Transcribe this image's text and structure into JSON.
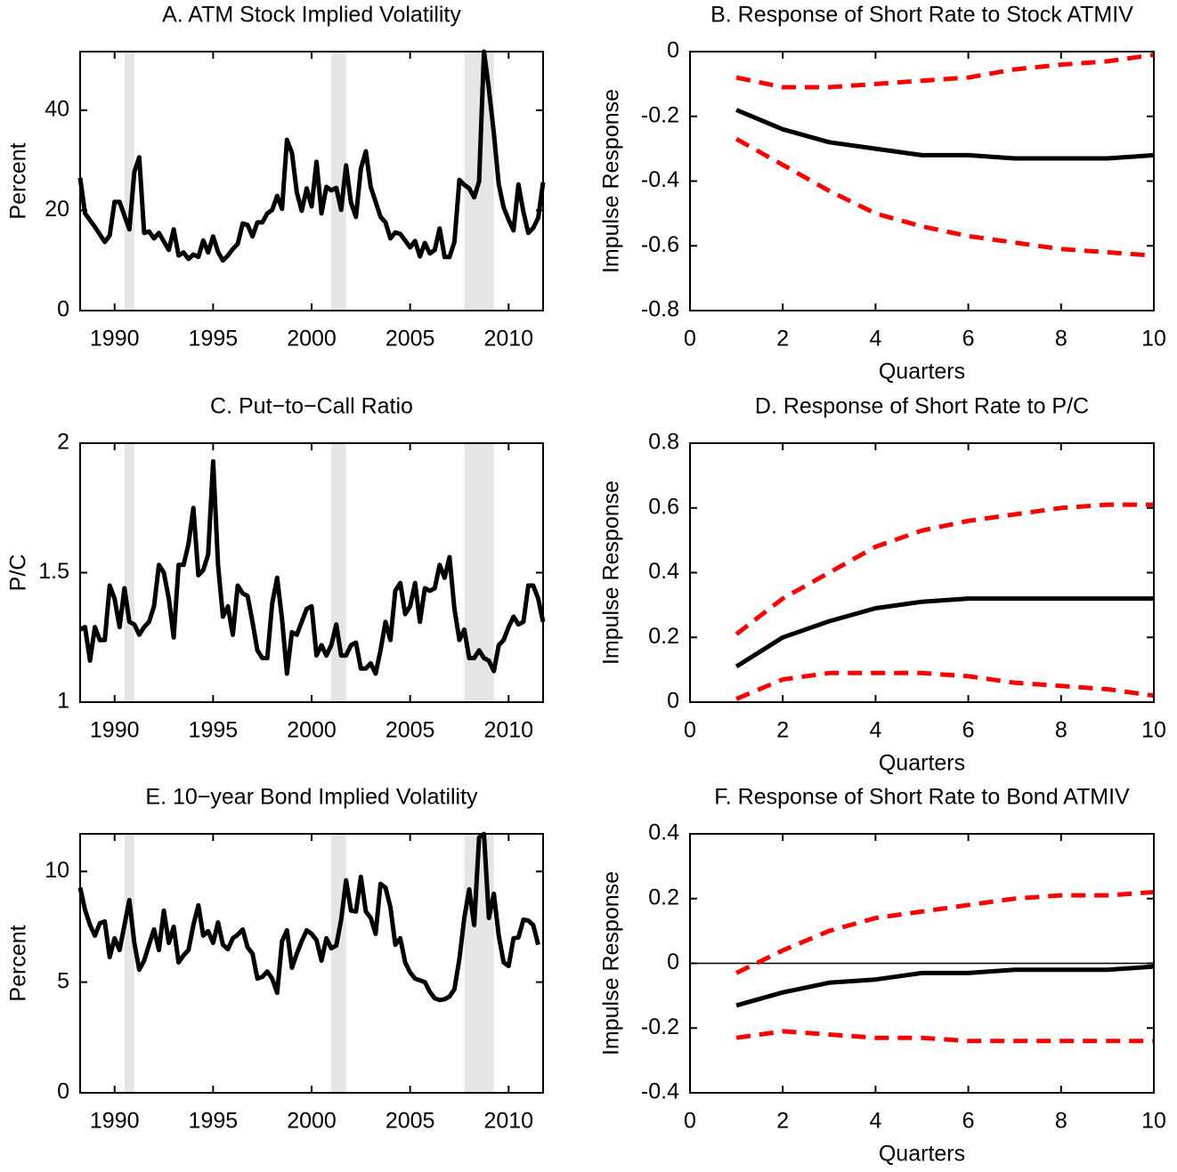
{
  "chart_data": [
    {
      "type": "line",
      "title": "A. ATM Stock Implied Volatility",
      "ylabel": "Percent",
      "x": [
        1988.25,
        1988.5,
        1989,
        1989.5,
        1989.75,
        1990,
        1990.25,
        1990.75,
        1991,
        1991.25,
        1991.5,
        1991.75,
        1992,
        1992.25,
        1992.75,
        1993,
        1993.25,
        1993.5,
        1993.75,
        1994,
        1994.25,
        1994.5,
        1994.75,
        1995,
        1995.25,
        1995.5,
        1995.75,
        1996,
        1996.25,
        1996.5,
        1996.75,
        1997,
        1997.25,
        1997.5,
        1997.75,
        1998,
        1998.25,
        1998.5,
        1998.75,
        1999,
        1999.25,
        1999.5,
        1999.75,
        2000,
        2000.25,
        2000.5,
        2000.75,
        2001,
        2001.25,
        2001.5,
        2001.75,
        2002,
        2002.25,
        2002.5,
        2002.75,
        2003,
        2003.5,
        2003.75,
        2004,
        2004.25,
        2004.5,
        2004.75,
        2005,
        2005.25,
        2005.5,
        2005.75,
        2006,
        2006.25,
        2006.5,
        2006.75,
        2007,
        2007.25,
        2007.5,
        2007.75,
        2008,
        2008.25,
        2008.5,
        2008.75,
        2009,
        2009.25,
        2009.5,
        2009.75,
        2010,
        2010.25,
        2010.5,
        2010.75,
        2011,
        2011.25,
        2011.5,
        2011.75
      ],
      "values": [
        26.5,
        19.4,
        16.7,
        13.7,
        15,
        21.7,
        21.7,
        16.2,
        27.7,
        30.6,
        15.5,
        15.8,
        14.4,
        15.5,
        12.1,
        16.2,
        11,
        11.6,
        10.3,
        11.2,
        10.7,
        14,
        11.6,
        14.8,
        11.7,
        10,
        11,
        12.3,
        13.3,
        17.4,
        17.1,
        14.8,
        17.6,
        17.6,
        19.4,
        20.1,
        22.9,
        20.3,
        34.1,
        31.5,
        23.6,
        19.9,
        24.4,
        20.8,
        29.7,
        19.4,
        24.7,
        24,
        24.5,
        20.1,
        29,
        21.5,
        18.7,
        28.3,
        31.8,
        24.7,
        18.7,
        17.6,
        14.4,
        15.6,
        15.3,
        14,
        12.6,
        13.9,
        10.8,
        13.5,
        11.4,
        12.1,
        16.4,
        10.7,
        10.7,
        13.7,
        26.1,
        25.1,
        24.4,
        22.6,
        25.8,
        51.7,
        44.3,
        35.4,
        25.2,
        20.6,
        18.1,
        16,
        25.2,
        19.7,
        15.5,
        16.5,
        18.5,
        25.6
      ],
      "color": "#000000",
      "shaded": [
        [
          1990.5,
          1991
        ],
        [
          2001,
          2001.75
        ],
        [
          2007.75,
          2009.25
        ]
      ],
      "shade_color": "#e5e5e5",
      "xlim": [
        1988.25,
        2011.75
      ],
      "xticks": [
        1990,
        1995,
        2000,
        2005,
        2010
      ],
      "ylim": [
        0,
        51.7
      ],
      "yticks": [
        0,
        20,
        40
      ]
    },
    {
      "type": "irf",
      "title": "B. Response of Short Rate to Stock ATMIV",
      "ylabel": "Impulse Response",
      "xlabel": "Quarters",
      "x": [
        1,
        2,
        3,
        4,
        5,
        6,
        7,
        8,
        9,
        10
      ],
      "series": [
        {
          "color": "#ff0000",
          "dash": true,
          "values": [
            -0.08,
            -0.11,
            -0.11,
            -0.1,
            -0.09,
            -0.08,
            -0.055,
            -0.04,
            -0.03,
            -0.01
          ]
        },
        {
          "color": "#ff0000",
          "dash": true,
          "values": [
            -0.27,
            -0.35,
            -0.43,
            -0.5,
            -0.54,
            -0.57,
            -0.59,
            -0.61,
            -0.62,
            -0.63
          ]
        },
        {
          "color": "#000000",
          "dash": false,
          "values": [
            -0.18,
            -0.24,
            -0.28,
            -0.3,
            -0.32,
            -0.32,
            -0.33,
            -0.33,
            -0.33,
            -0.32
          ]
        }
      ],
      "xlim": [
        0,
        10
      ],
      "xticks": [
        0,
        2,
        4,
        6,
        8,
        10
      ],
      "ylim": [
        -0.8,
        0
      ],
      "yticks": [
        -0.8,
        -0.6,
        -0.4,
        -0.2,
        0
      ]
    },
    {
      "type": "line",
      "title": "C. Put−to−Call Ratio",
      "ylabel": "P/C",
      "x": [
        1988.25,
        1988.5,
        1988.75,
        1989,
        1989.25,
        1989.5,
        1989.75,
        1990,
        1990.25,
        1990.5,
        1990.75,
        1991,
        1991.25,
        1991.5,
        1991.75,
        1992,
        1992.25,
        1992.5,
        1992.75,
        1993,
        1993.25,
        1993.5,
        1993.75,
        1994,
        1994.25,
        1994.5,
        1994.75,
        1995,
        1995.25,
        1995.5,
        1995.75,
        1996,
        1996.25,
        1996.5,
        1996.75,
        1997,
        1997.25,
        1997.5,
        1997.75,
        1998,
        1998.25,
        1998.5,
        1998.75,
        1999,
        1999.25,
        1999.5,
        1999.75,
        2000,
        2000.25,
        2000.5,
        2000.75,
        2001,
        2001.25,
        2001.5,
        2001.75,
        2002,
        2002.25,
        2002.5,
        2002.75,
        2003,
        2003.25,
        2003.5,
        2003.75,
        2004,
        2004.25,
        2004.5,
        2004.75,
        2005,
        2005.25,
        2005.5,
        2005.75,
        2006,
        2006.25,
        2006.5,
        2006.75,
        2007,
        2007.25,
        2007.5,
        2007.75,
        2008,
        2008.25,
        2008.5,
        2008.75,
        2009,
        2009.25,
        2009.5,
        2009.75,
        2010,
        2010.25,
        2010.5,
        2010.75,
        2011,
        2011.25,
        2011.5,
        2011.75
      ],
      "values": [
        1.28,
        1.29,
        1.16,
        1.29,
        1.24,
        1.24,
        1.45,
        1.4,
        1.29,
        1.44,
        1.31,
        1.3,
        1.26,
        1.29,
        1.31,
        1.37,
        1.53,
        1.5,
        1.4,
        1.25,
        1.53,
        1.53,
        1.61,
        1.75,
        1.49,
        1.51,
        1.57,
        1.93,
        1.53,
        1.33,
        1.37,
        1.26,
        1.45,
        1.42,
        1.41,
        1.31,
        1.2,
        1.17,
        1.17,
        1.38,
        1.48,
        1.32,
        1.11,
        1.27,
        1.26,
        1.31,
        1.36,
        1.37,
        1.18,
        1.22,
        1.18,
        1.22,
        1.3,
        1.18,
        1.18,
        1.22,
        1.23,
        1.13,
        1.13,
        1.15,
        1.11,
        1.2,
        1.31,
        1.24,
        1.43,
        1.46,
        1.34,
        1.37,
        1.46,
        1.31,
        1.44,
        1.43,
        1.44,
        1.53,
        1.48,
        1.56,
        1.36,
        1.24,
        1.28,
        1.17,
        1.17,
        1.2,
        1.17,
        1.16,
        1.12,
        1.22,
        1.24,
        1.29,
        1.33,
        1.3,
        1.31,
        1.45,
        1.45,
        1.4,
        1.31
      ],
      "color": "#000000",
      "shaded": [
        [
          1990.5,
          1991
        ],
        [
          2001,
          2001.75
        ],
        [
          2007.75,
          2009.25
        ]
      ],
      "shade_color": "#e5e5e5",
      "xlim": [
        1988.25,
        2011.75
      ],
      "xticks": [
        1990,
        1995,
        2000,
        2005,
        2010
      ],
      "ylim": [
        1,
        2
      ],
      "yticks": [
        1,
        1.5,
        2
      ]
    },
    {
      "type": "irf",
      "title": "D. Response of Short Rate to P/C",
      "ylabel": "Impulse Response",
      "xlabel": "Quarters",
      "x": [
        1,
        2,
        3,
        4,
        5,
        6,
        7,
        8,
        9,
        10
      ],
      "series": [
        {
          "color": "#ff0000",
          "dash": true,
          "values": [
            0.21,
            0.32,
            0.4,
            0.48,
            0.53,
            0.56,
            0.58,
            0.6,
            0.61,
            0.61
          ]
        },
        {
          "color": "#ff0000",
          "dash": true,
          "values": [
            0.01,
            0.07,
            0.09,
            0.09,
            0.09,
            0.08,
            0.06,
            0.05,
            0.04,
            0.02
          ]
        },
        {
          "color": "#000000",
          "dash": false,
          "values": [
            0.11,
            0.2,
            0.25,
            0.29,
            0.31,
            0.32,
            0.32,
            0.32,
            0.32,
            0.32
          ]
        }
      ],
      "xlim": [
        0,
        10
      ],
      "xticks": [
        0,
        2,
        4,
        6,
        8,
        10
      ],
      "ylim": [
        0,
        0.8
      ],
      "yticks": [
        0,
        0.2,
        0.4,
        0.6,
        0.8
      ]
    },
    {
      "type": "line",
      "title": "E. 10−year Bond Implied Volatility",
      "ylabel": "Percent",
      "x": [
        1988.25,
        1988.5,
        1988.75,
        1989,
        1989.25,
        1989.5,
        1989.75,
        1990,
        1990.25,
        1990.5,
        1990.75,
        1991,
        1991.25,
        1991.5,
        1991.75,
        1992,
        1992.25,
        1992.5,
        1992.75,
        1993,
        1993.25,
        1993.5,
        1993.75,
        1994,
        1994.25,
        1994.5,
        1994.75,
        1995,
        1995.25,
        1995.5,
        1995.75,
        1996,
        1996.25,
        1996.5,
        1996.75,
        1997,
        1997.25,
        1997.5,
        1997.75,
        1998,
        1998.25,
        1998.5,
        1998.75,
        1999,
        1999.25,
        1999.5,
        1999.75,
        2000,
        2000.25,
        2000.5,
        2000.75,
        2001,
        2001.25,
        2001.5,
        2001.75,
        2002,
        2002.25,
        2002.5,
        2002.75,
        2003,
        2003.25,
        2003.5,
        2003.75,
        2004,
        2004.25,
        2004.5,
        2004.75,
        2005,
        2005.25,
        2005.5,
        2005.75,
        2006,
        2006.25,
        2006.5,
        2006.75,
        2007,
        2007.25,
        2007.5,
        2007.75,
        2008,
        2008.25,
        2008.5,
        2008.75,
        2009,
        2009.25,
        2009.5,
        2009.75,
        2010,
        2010.25,
        2010.5,
        2010.75,
        2011,
        2011.25,
        2011.5
      ],
      "values": [
        9.27,
        8.27,
        7.58,
        7.1,
        7.66,
        7.74,
        6.13,
        6.98,
        6.45,
        7.58,
        8.71,
        6.77,
        5.56,
        5.97,
        6.69,
        7.38,
        6.45,
        8.23,
        6.77,
        7.5,
        5.89,
        6.21,
        6.45,
        7.58,
        8.47,
        7.1,
        7.3,
        6.77,
        7.7,
        6.69,
        6.49,
        6.98,
        7.14,
        7.38,
        6.57,
        6.29,
        5.16,
        5.24,
        5.48,
        5.16,
        4.52,
        6.85,
        7.34,
        5.65,
        6.29,
        6.85,
        7.34,
        7.18,
        6.9,
        5.97,
        6.98,
        6.53,
        6.65,
        7.82,
        9.6,
        8.23,
        8.19,
        9.76,
        8.19,
        7.9,
        7.18,
        9.44,
        9.27,
        8.39,
        6.69,
        6.98,
        5.89,
        5.44,
        5.16,
        5.08,
        5.0,
        4.56,
        4.27,
        4.19,
        4.23,
        4.35,
        4.68,
        6.05,
        7.9,
        9.19,
        7.58,
        11.53,
        11.69,
        7.9,
        8.99,
        7.1,
        5.89,
        5.73,
        6.98,
        7.02,
        7.82,
        7.78,
        7.58,
        6.69
      ],
      "color": "#000000",
      "shaded": [
        [
          1990.5,
          1991
        ],
        [
          2001,
          2001.75
        ],
        [
          2007.75,
          2009.25
        ]
      ],
      "shade_color": "#e5e5e5",
      "xlim": [
        1988.25,
        2011.75
      ],
      "xticks": [
        1990,
        1995,
        2000,
        2005,
        2010
      ],
      "ylim": [
        0,
        11.7
      ],
      "yticks": [
        0,
        5,
        10
      ]
    },
    {
      "type": "irf",
      "title": "F. Response of Short Rate to Bond ATMIV",
      "ylabel": "Impulse Response",
      "xlabel": "Quarters",
      "x": [
        1,
        2,
        3,
        4,
        5,
        6,
        7,
        8,
        9,
        10
      ],
      "series": [
        {
          "color": "#ff0000",
          "dash": true,
          "values": [
            -0.03,
            0.04,
            0.1,
            0.14,
            0.16,
            0.18,
            0.2,
            0.21,
            0.21,
            0.22
          ]
        },
        {
          "color": "#ff0000",
          "dash": true,
          "values": [
            -0.23,
            -0.21,
            -0.22,
            -0.23,
            -0.23,
            -0.24,
            -0.24,
            -0.24,
            -0.24,
            -0.24
          ]
        },
        {
          "color": "#000000",
          "dash": false,
          "values": [
            -0.13,
            -0.09,
            -0.06,
            -0.05,
            -0.03,
            -0.03,
            -0.02,
            -0.02,
            -0.02,
            -0.01
          ]
        }
      ],
      "hline": 0,
      "xlim": [
        0,
        10
      ],
      "xticks": [
        0,
        2,
        4,
        6,
        8,
        10
      ],
      "ylim": [
        -0.4,
        0.4
      ],
      "yticks": [
        -0.4,
        -0.2,
        0,
        0.2,
        0.4
      ]
    }
  ]
}
